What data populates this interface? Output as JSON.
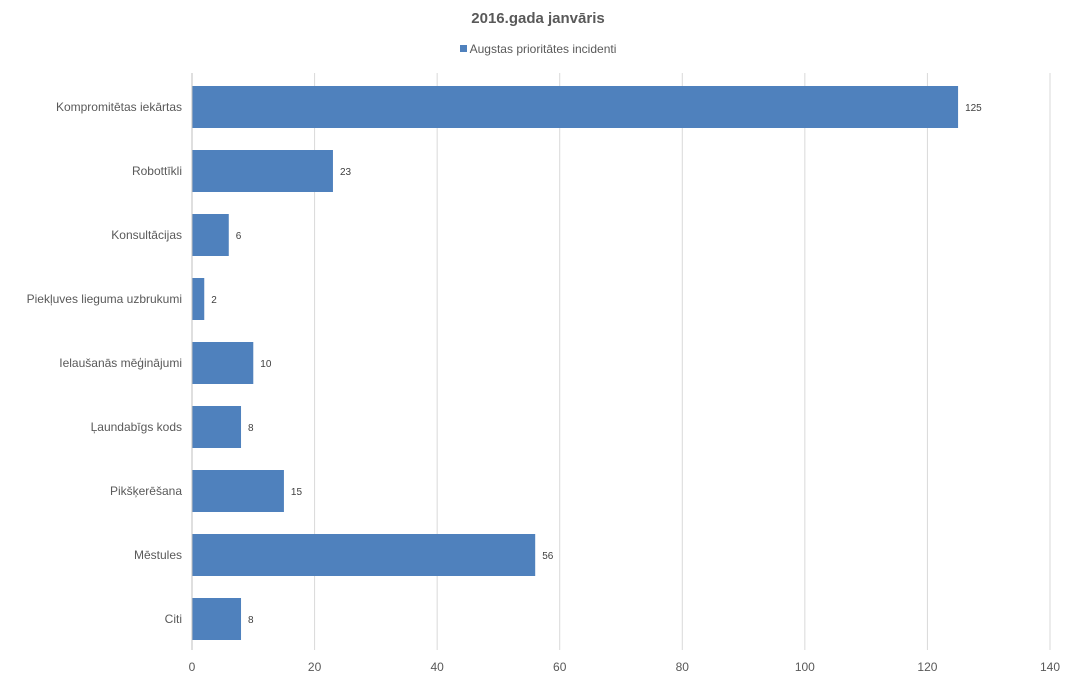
{
  "chart_data": {
    "type": "bar",
    "orientation": "horizontal",
    "title": "2016.gada janvāris",
    "categories": [
      "Kompromitētas iekārtas",
      "Robottīkli",
      "Konsultācijas",
      "Piekļuves lieguma uzbrukumi",
      "Ielaušanās mēģinājumi",
      "Ļaundabīgs kods",
      "Pikšķerēšana",
      "Mēstules",
      "Citi"
    ],
    "series": [
      {
        "name": "Augstas prioritātes incidenti",
        "values": [
          125,
          23,
          6,
          2,
          10,
          8,
          15,
          56,
          8
        ],
        "color": "#4f81bd"
      }
    ],
    "xlim": [
      0,
      140
    ],
    "xticks": [
      0,
      20,
      40,
      60,
      80,
      100,
      120,
      140
    ],
    "grid": "vertical",
    "legend_position": "top",
    "data_labels": true
  }
}
